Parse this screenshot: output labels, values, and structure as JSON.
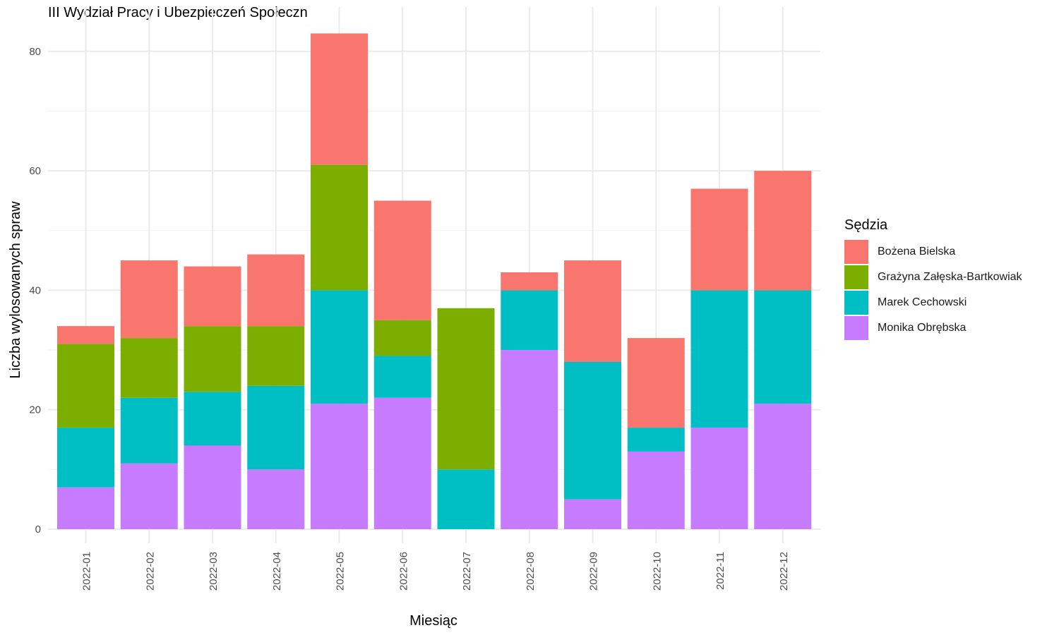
{
  "chart_data": {
    "type": "bar",
    "stacked": true,
    "title": "III Wydział Pracy i Ubezpieczeń Społeczn",
    "xlabel": "Miesiąc",
    "ylabel": "Liczba wylosowanych spraw",
    "ylim": [
      0,
      85
    ],
    "yticks": [
      "0",
      "20",
      "40",
      "60",
      "80"
    ],
    "grid": true,
    "legend_position": "right",
    "legend_title": "Sędzia",
    "categories": [
      "2022-01",
      "2022-02",
      "2022-03",
      "2022-04",
      "2022-05",
      "2022-06",
      "2022-07",
      "2022-08",
      "2022-09",
      "2022-10",
      "2022-11",
      "2022-12"
    ],
    "series": [
      {
        "name": "Bożena Bielska",
        "color": "#F8766D",
        "values": [
          3,
          13,
          10,
          12,
          22,
          20,
          0,
          3,
          17,
          15,
          17,
          20
        ]
      },
      {
        "name": "Grażyna Załęska-Bartkowiak",
        "color": "#7CAE00",
        "values": [
          14,
          10,
          11,
          10,
          21,
          6,
          27,
          0,
          0,
          0,
          0,
          0
        ]
      },
      {
        "name": "Marek Cechowski",
        "color": "#00BFC4",
        "values": [
          10,
          11,
          9,
          14,
          19,
          7,
          10,
          10,
          23,
          4,
          23,
          19
        ]
      },
      {
        "name": "Monika Obrębska",
        "color": "#C77CFF",
        "values": [
          7,
          11,
          14,
          10,
          21,
          22,
          0,
          30,
          5,
          13,
          17,
          21
        ]
      }
    ]
  }
}
